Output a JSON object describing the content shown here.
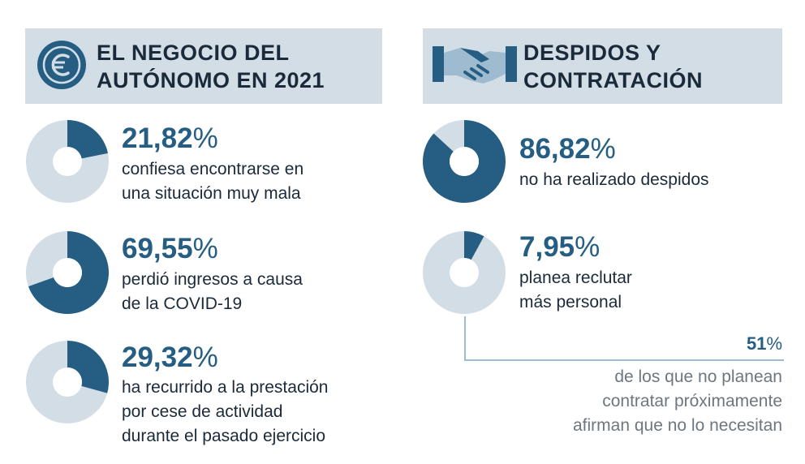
{
  "colors": {
    "dark": "#255e82",
    "light": "#d3dde6",
    "text": "#1b2a3a",
    "muted": "#6e7680",
    "connector": "#9fbbd0"
  },
  "left_panel": {
    "icon": "euro-coin-icon",
    "title_line1": "EL NEGOCIO DEL",
    "title_line2": "AUTÓNOMO EN 2021"
  },
  "right_panel": {
    "icon": "handshake-icon",
    "title_line1": "DESPIDOS Y",
    "title_line2": "CONTRATACIÓN"
  },
  "chart_data": [
    {
      "type": "pie",
      "value_pct": 21.82,
      "label": "21,82",
      "symbol": "%",
      "desc_line1": "confiesa encontrarse en",
      "desc_line2": "una situación muy mala"
    },
    {
      "type": "pie",
      "value_pct": 69.55,
      "label": "69,55",
      "symbol": "%",
      "desc_line1": "perdió ingresos a causa",
      "desc_line2": "de la COVID-19"
    },
    {
      "type": "pie",
      "value_pct": 29.32,
      "label": "29,32",
      "symbol": "%",
      "desc_line1": "ha recurrido a la prestación",
      "desc_line2": "por cese de actividad",
      "desc_line3": "durante el pasado ejercicio"
    },
    {
      "type": "pie",
      "value_pct": 86.82,
      "label": "86,82",
      "symbol": "%",
      "desc_line1": "no ha realizado despidos"
    },
    {
      "type": "pie",
      "value_pct": 7.95,
      "label": "7,95",
      "symbol": "%",
      "desc_line1": "planea reclutar",
      "desc_line2": "más personal"
    }
  ],
  "note": {
    "pct": "51",
    "symbol": "%",
    "line1": "de los que no planean",
    "line2": "contratar próximamente",
    "line3": "afirman que no lo necesitan"
  }
}
